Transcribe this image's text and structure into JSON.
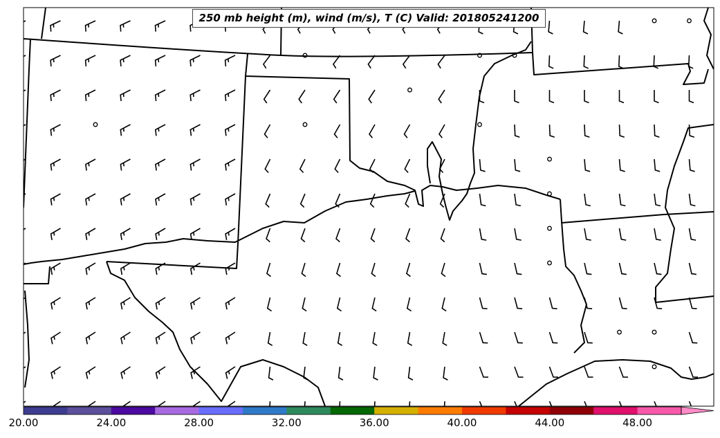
{
  "title": "250 mb height (m), wind (m/s), T (C) Valid: 201805241200",
  "colorbar": {
    "tick_labels": [
      "20.00",
      "24.00",
      "28.00",
      "32.00",
      "36.00",
      "40.00",
      "44.00",
      "48.00"
    ],
    "colors": [
      "#3d3d90",
      "#5c4f9c",
      "#4b0aa0",
      "#a86ae0",
      "#6a6eff",
      "#2f7ac8",
      "#2e8a5c",
      "#046804",
      "#d6b000",
      "#ff7c00",
      "#f03a00",
      "#c40000",
      "#8e0006",
      "#e0106c",
      "#f85aaa",
      "#ff8cc8"
    ]
  }
}
